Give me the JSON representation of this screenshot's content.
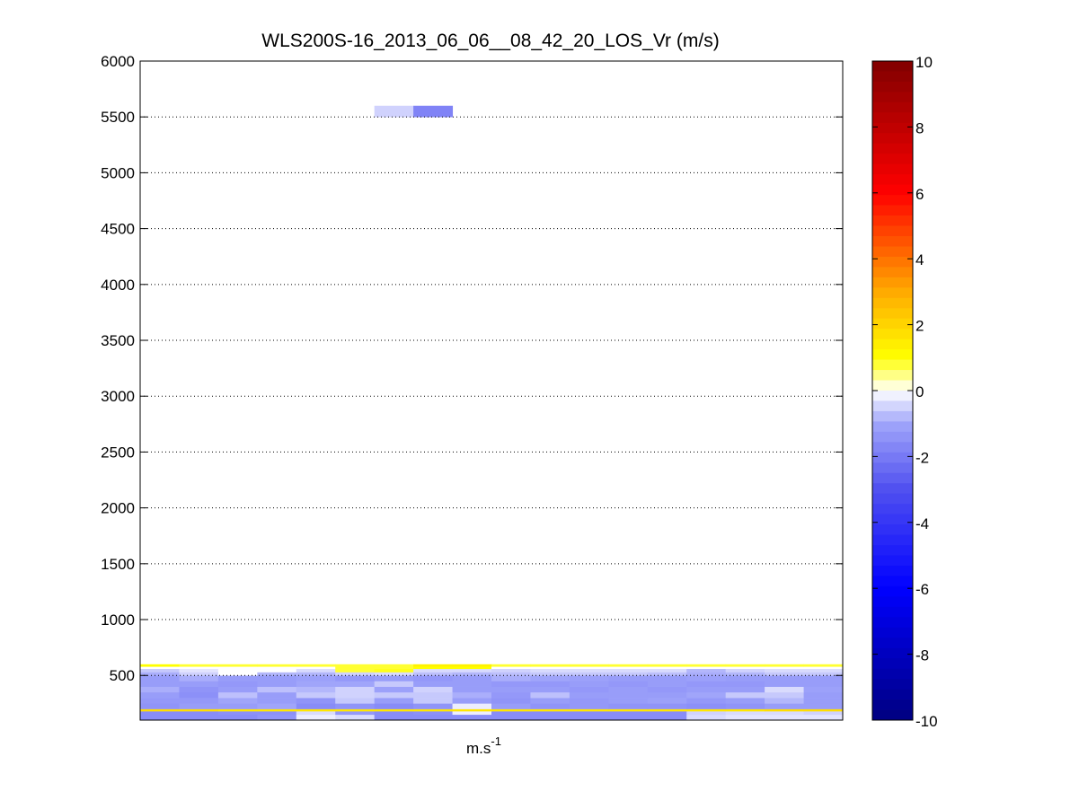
{
  "chart_data": {
    "type": "heatmap",
    "title": "WLS200S-16_2013_06_06__08_42_20_LOS_Vr (m/s)",
    "xlabel": "m.s",
    "xlabel_superscript": "-1",
    "ylabel": "",
    "ylim": [
      100,
      6000
    ],
    "y_ticks": [
      500,
      1000,
      1500,
      2000,
      2500,
      3000,
      3500,
      4000,
      4500,
      5000,
      5500,
      6000
    ],
    "grid": "horizontal dotted",
    "colorbar": {
      "range": [
        -10,
        10
      ],
      "ticks": [
        -10,
        -8,
        -6,
        -4,
        -2,
        0,
        2,
        4,
        6,
        8,
        10
      ]
    },
    "cell_rows": [
      {
        "y0": 100,
        "y1": 150,
        "values": [
          -1.6,
          -1.6,
          -1.6,
          -1.4,
          -0.2,
          -0.4,
          -1.6,
          -1.6,
          -1.6,
          -1.6,
          -1.6,
          -1.6,
          -1.6,
          -1.6,
          -0.4,
          -0.3,
          -0.3,
          -0.3
        ]
      },
      {
        "y0": 150,
        "y1": 180,
        "values": [
          -1.6,
          -1.6,
          -1.5,
          -1.5,
          -0.4,
          -1.3,
          -1.6,
          -1.5,
          -0.2,
          -1.6,
          -1.6,
          -1.6,
          -1.6,
          -1.6,
          -0.5,
          -0.4,
          -0.4,
          -0.5
        ]
      },
      {
        "y0": 180,
        "y1": 200,
        "values": [
          1.8,
          1.8,
          1.6,
          1.6,
          1.6,
          1.6,
          1.6,
          1.6,
          1.6,
          1.6,
          1.6,
          1.6,
          1.6,
          1.6,
          1.6,
          1.6,
          1.8,
          1.8
        ]
      },
      {
        "y0": 200,
        "y1": 250,
        "values": [
          -1.4,
          -1.2,
          -1.2,
          -1.0,
          -1.6,
          -1.4,
          -1.6,
          -1.4,
          -0.2,
          -1.2,
          -1.4,
          -1.3,
          -1.4,
          -1.4,
          -1.5,
          -1.4,
          -1.2,
          -1.2
        ]
      },
      {
        "y0": 250,
        "y1": 300,
        "values": [
          -1.3,
          -1.3,
          -1.0,
          -1.2,
          -1.4,
          -0.6,
          -1.2,
          -0.6,
          -1.2,
          -1.4,
          -1.2,
          -1.3,
          -1.2,
          -1.1,
          -1.3,
          -1.2,
          -0.8,
          -1.2
        ]
      },
      {
        "y0": 300,
        "y1": 350,
        "values": [
          -1.2,
          -1.5,
          -0.7,
          -1.2,
          -0.6,
          -0.5,
          -0.6,
          -0.6,
          -0.9,
          -1.3,
          -0.7,
          -1.2,
          -1.2,
          -1.2,
          -1.0,
          -0.6,
          -0.6,
          -1.2
        ]
      },
      {
        "y0": 350,
        "y1": 400,
        "values": [
          -0.9,
          -1.4,
          -1.2,
          -0.7,
          -0.8,
          -0.5,
          -1.1,
          -0.5,
          -1.2,
          -1.2,
          -1.2,
          -1.3,
          -1.2,
          -1.3,
          -1.2,
          -1.2,
          -0.4,
          -1.1
        ]
      },
      {
        "y0": 400,
        "y1": 450,
        "values": [
          -1.2,
          -1.2,
          -1.3,
          -1.2,
          -1.0,
          -1.0,
          -0.6,
          -1.2,
          -1.2,
          -1.3,
          -1.3,
          -1.2,
          -1.3,
          -1.2,
          -1.3,
          -1.3,
          -1.2,
          -1.2
        ]
      },
      {
        "y0": 450,
        "y1": 500,
        "values": [
          -1.2,
          -0.9,
          -1.2,
          -1.2,
          -1.1,
          -1.3,
          -1.2,
          -1.3,
          -1.2,
          -0.9,
          -1.0,
          -1.1,
          -1.2,
          -1.2,
          -1.1,
          -1.2,
          -1.2,
          -1.2
        ]
      },
      {
        "y0": 500,
        "y1": 530,
        "values": [
          -0.9,
          -0.5,
          0.0,
          -0.8,
          -0.8,
          -0.5,
          -0.4,
          -0.7,
          -0.8,
          -0.7,
          -0.6,
          -0.6,
          -0.6,
          -0.7,
          -0.9,
          -0.8,
          -0.6,
          -0.6
        ]
      },
      {
        "y0": 530,
        "y1": 560,
        "values": [
          -0.6,
          -0.3,
          0.0,
          0.0,
          -0.4,
          0.8,
          0.9,
          -0.4,
          -0.4,
          -0.5,
          -0.4,
          -0.4,
          -0.4,
          -0.4,
          -0.8,
          -0.5,
          -0.4,
          -0.4
        ]
      },
      {
        "y0": 560,
        "y1": 580,
        "values": [
          0.0,
          0.0,
          0.0,
          0.0,
          0.0,
          0.8,
          0.8,
          1.0,
          1.0,
          0.0,
          0.0,
          0.0,
          0.0,
          0.0,
          0.0,
          0.0,
          0.0,
          0.0
        ]
      },
      {
        "y0": 580,
        "y1": 600,
        "values": [
          1.0,
          0.8,
          0.8,
          0.8,
          0.8,
          0.8,
          0.8,
          1.3,
          1.3,
          0.8,
          0.8,
          0.8,
          0.8,
          0.8,
          0.8,
          0.8,
          0.8,
          0.8
        ]
      },
      {
        "y0": 5500,
        "y1": 5600,
        "values": [
          null,
          null,
          null,
          null,
          null,
          null,
          -0.5,
          -1.8,
          null,
          null,
          null,
          null,
          null,
          null,
          null,
          null,
          null,
          null
        ]
      }
    ]
  }
}
